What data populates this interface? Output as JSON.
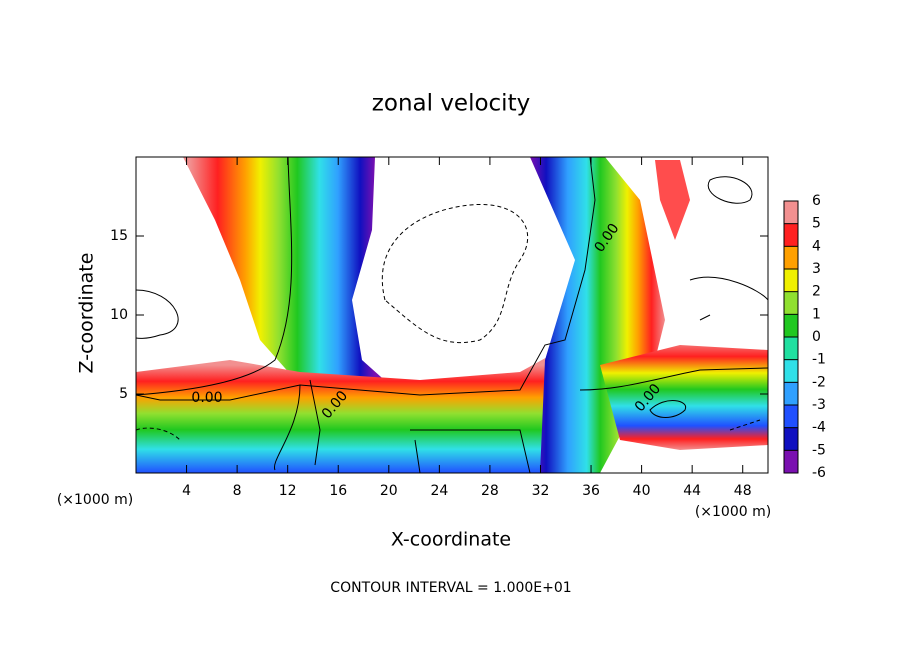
{
  "chart_data": {
    "type": "contour",
    "title": "zonal velocity",
    "xlabel": "X-coordinate",
    "ylabel": "Z-coordinate",
    "x_unit": "(×1000 m)",
    "footnote": "CONTOUR INTERVAL = 1.000E+01",
    "xlim": [
      0,
      50
    ],
    "ylim": [
      0,
      20
    ],
    "xticks": [
      4,
      8,
      12,
      16,
      20,
      24,
      28,
      32,
      36,
      40,
      44,
      48
    ],
    "yticks": [
      5,
      10,
      15
    ],
    "contour_labels": [
      "0.00",
      "0.00",
      "0.00",
      "0.00"
    ],
    "colorbar": {
      "ticks": [
        -6,
        -5,
        -4,
        -3,
        -2,
        -1,
        0,
        1,
        2,
        3,
        4,
        5,
        6
      ],
      "colors": [
        "#7a10b0",
        "#1010c0",
        "#2050ff",
        "#30a0ff",
        "#30e0e8",
        "#20e0a0",
        "#20c820",
        "#90e030",
        "#f0f000",
        "#ffa000",
        "#ff2020",
        "#f29090"
      ]
    }
  }
}
